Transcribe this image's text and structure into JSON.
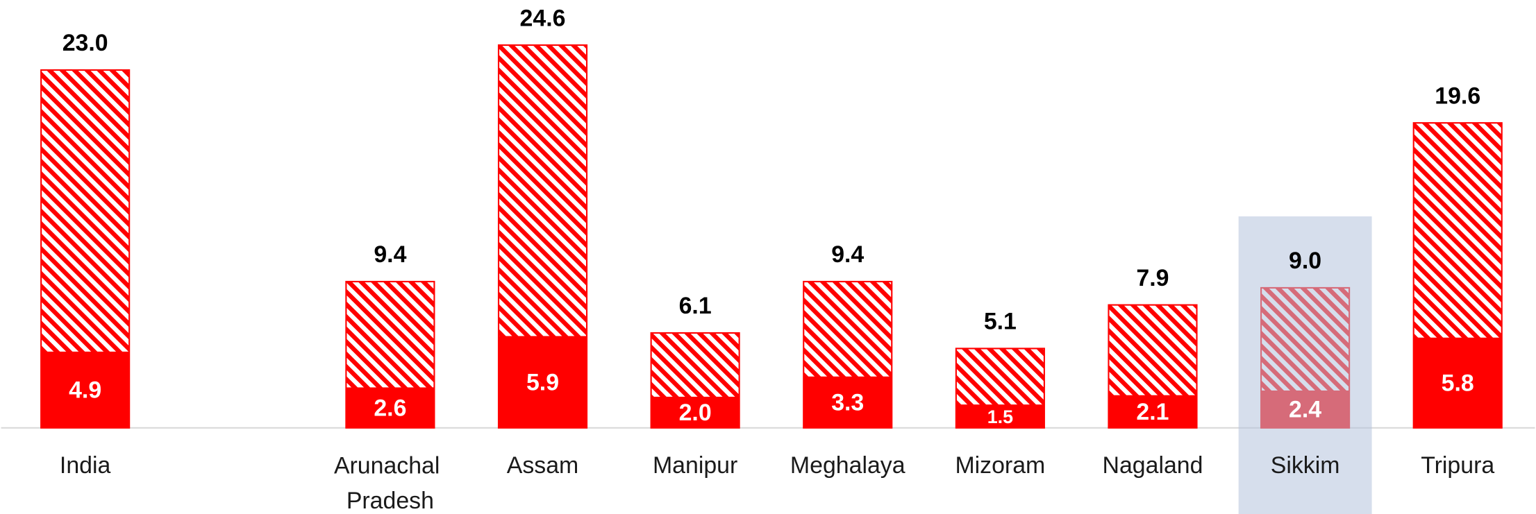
{
  "chart_data": {
    "type": "bar",
    "overlap": true,
    "categories": [
      "India",
      null,
      "Arunachal Pradesh",
      "Assam",
      "Manipur",
      "Meghalaya",
      "Mizoram",
      "Nagaland",
      "Sikkim",
      "Tripura"
    ],
    "series": [
      {
        "color": "#ff0000",
        "pattern": "hatch",
        "values": [
          23.0,
          null,
          9.4,
          24.6,
          6.1,
          9.4,
          5.1,
          7.9,
          9.0,
          19.6
        ],
        "value_labels": [
          "23.0",
          null,
          "9.4",
          "24.6",
          "6.1",
          "9.4",
          "5.1",
          "7.9",
          "9.0",
          "19.6"
        ]
      },
      {
        "color": "#ff0000",
        "values": [
          4.9,
          null,
          2.6,
          5.9,
          2.0,
          3.3,
          1.5,
          2.1,
          2.4,
          5.8
        ],
        "value_labels": [
          "4.9",
          null,
          "2.6",
          "5.9",
          "2.0",
          "3.3",
          "1.5",
          "2.1",
          "2.4",
          "5.8"
        ]
      }
    ],
    "ylim": [
      0,
      27.5
    ],
    "highlight_index": 8,
    "highlight_color": "#b4c3dc"
  }
}
